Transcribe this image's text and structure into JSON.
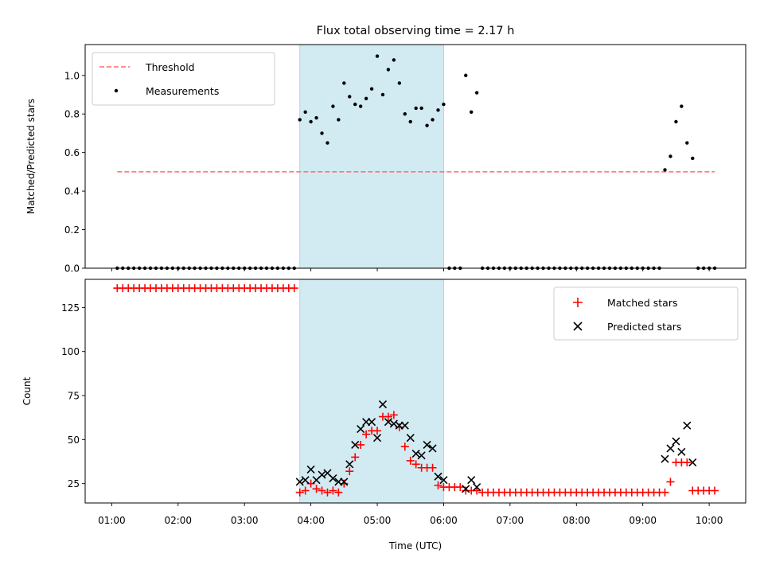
{
  "chart_data": {
    "title": "Flux total observing time = 2.17 h",
    "xlabel": "Time (UTC)",
    "x_ticks": [
      "01:00",
      "02:00",
      "03:00",
      "04:00",
      "05:00",
      "06:00",
      "07:00",
      "08:00",
      "09:00",
      "10:00"
    ],
    "highlight_span": {
      "start": "03:50",
      "end": "06:00",
      "color": "#add8e6"
    },
    "colors": {
      "threshold": "#ff6b6b",
      "matched": "#ff0000",
      "predicted": "#000000",
      "measurements": "#000000"
    },
    "panels": [
      {
        "type": "scatter",
        "ylabel": "Matched/Predicted stars",
        "ylim": [
          0,
          1.16
        ],
        "y_ticks": [
          "0.0",
          "0.2",
          "0.4",
          "0.6",
          "0.8",
          "1.0"
        ],
        "legend_position": "top-left",
        "threshold": {
          "name": "Threshold",
          "value": 0.5,
          "x_range": [
            "01:05",
            "10:05"
          ]
        },
        "measurements_label": "Measurements",
        "measurements": [
          [
            "01:05",
            0
          ],
          [
            "01:10",
            0
          ],
          [
            "01:15",
            0
          ],
          [
            "01:20",
            0
          ],
          [
            "01:25",
            0
          ],
          [
            "01:30",
            0
          ],
          [
            "01:35",
            0
          ],
          [
            "01:40",
            0
          ],
          [
            "01:45",
            0
          ],
          [
            "01:50",
            0
          ],
          [
            "01:55",
            0
          ],
          [
            "02:00",
            0
          ],
          [
            "02:05",
            0
          ],
          [
            "02:10",
            0
          ],
          [
            "02:15",
            0
          ],
          [
            "02:20",
            0
          ],
          [
            "02:25",
            0
          ],
          [
            "02:30",
            0
          ],
          [
            "02:35",
            0
          ],
          [
            "02:40",
            0
          ],
          [
            "02:45",
            0
          ],
          [
            "02:50",
            0
          ],
          [
            "02:55",
            0
          ],
          [
            "03:00",
            0
          ],
          [
            "03:05",
            0
          ],
          [
            "03:10",
            0
          ],
          [
            "03:15",
            0
          ],
          [
            "03:20",
            0
          ],
          [
            "03:25",
            0
          ],
          [
            "03:30",
            0
          ],
          [
            "03:35",
            0
          ],
          [
            "03:40",
            0
          ],
          [
            "03:45",
            0
          ],
          [
            "03:50",
            0.77
          ],
          [
            "03:55",
            0.81
          ],
          [
            "04:00",
            0.76
          ],
          [
            "04:05",
            0.78
          ],
          [
            "04:10",
            0.7
          ],
          [
            "04:15",
            0.65
          ],
          [
            "04:20",
            0.84
          ],
          [
            "04:25",
            0.77
          ],
          [
            "04:30",
            0.96
          ],
          [
            "04:35",
            0.89
          ],
          [
            "04:40",
            0.85
          ],
          [
            "04:45",
            0.84
          ],
          [
            "04:50",
            0.88
          ],
          [
            "04:55",
            0.93
          ],
          [
            "05:00",
            1.1
          ],
          [
            "05:05",
            0.9
          ],
          [
            "05:10",
            1.03
          ],
          [
            "05:15",
            1.08
          ],
          [
            "05:20",
            0.96
          ],
          [
            "05:25",
            0.8
          ],
          [
            "05:30",
            0.76
          ],
          [
            "05:35",
            0.83
          ],
          [
            "05:40",
            0.83
          ],
          [
            "05:45",
            0.74
          ],
          [
            "05:50",
            0.77
          ],
          [
            "05:55",
            0.82
          ],
          [
            "06:00",
            0.85
          ],
          [
            "06:05",
            0
          ],
          [
            "06:10",
            0
          ],
          [
            "06:15",
            0
          ],
          [
            "06:20",
            1.0
          ],
          [
            "06:25",
            0.81
          ],
          [
            "06:30",
            0.91
          ],
          [
            "06:35",
            0
          ],
          [
            "06:40",
            0
          ],
          [
            "06:45",
            0
          ],
          [
            "06:50",
            0
          ],
          [
            "06:55",
            0
          ],
          [
            "07:00",
            0
          ],
          [
            "07:05",
            0
          ],
          [
            "07:10",
            0
          ],
          [
            "07:15",
            0
          ],
          [
            "07:20",
            0
          ],
          [
            "07:25",
            0
          ],
          [
            "07:30",
            0
          ],
          [
            "07:35",
            0
          ],
          [
            "07:40",
            0
          ],
          [
            "07:45",
            0
          ],
          [
            "07:50",
            0
          ],
          [
            "07:55",
            0
          ],
          [
            "08:00",
            0
          ],
          [
            "08:05",
            0
          ],
          [
            "08:10",
            0
          ],
          [
            "08:15",
            0
          ],
          [
            "08:20",
            0
          ],
          [
            "08:25",
            0
          ],
          [
            "08:30",
            0
          ],
          [
            "08:35",
            0
          ],
          [
            "08:40",
            0
          ],
          [
            "08:45",
            0
          ],
          [
            "08:50",
            0
          ],
          [
            "08:55",
            0
          ],
          [
            "09:00",
            0
          ],
          [
            "09:05",
            0
          ],
          [
            "09:10",
            0
          ],
          [
            "09:15",
            0
          ],
          [
            "09:20",
            0.51
          ],
          [
            "09:25",
            0.58
          ],
          [
            "09:30",
            0.76
          ],
          [
            "09:35",
            0.84
          ],
          [
            "09:40",
            0.65
          ],
          [
            "09:45",
            0.57
          ],
          [
            "09:50",
            0
          ],
          [
            "09:55",
            0
          ],
          [
            "10:00",
            0
          ],
          [
            "10:05",
            0
          ]
        ]
      },
      {
        "type": "scatter",
        "ylabel": "Count",
        "ylim": [
          14,
          141
        ],
        "y_ticks": [
          "25",
          "50",
          "75",
          "100",
          "125"
        ],
        "legend_position": "top-right",
        "series": [
          {
            "name": "Matched stars",
            "marker": "plus",
            "points": [
              [
                "01:05",
                136
              ],
              [
                "01:10",
                136
              ],
              [
                "01:15",
                136
              ],
              [
                "01:20",
                136
              ],
              [
                "01:25",
                136
              ],
              [
                "01:30",
                136
              ],
              [
                "01:35",
                136
              ],
              [
                "01:40",
                136
              ],
              [
                "01:45",
                136
              ],
              [
                "01:50",
                136
              ],
              [
                "01:55",
                136
              ],
              [
                "02:00",
                136
              ],
              [
                "02:05",
                136
              ],
              [
                "02:10",
                136
              ],
              [
                "02:15",
                136
              ],
              [
                "02:20",
                136
              ],
              [
                "02:25",
                136
              ],
              [
                "02:30",
                136
              ],
              [
                "02:35",
                136
              ],
              [
                "02:40",
                136
              ],
              [
                "02:45",
                136
              ],
              [
                "02:50",
                136
              ],
              [
                "02:55",
                136
              ],
              [
                "03:00",
                136
              ],
              [
                "03:05",
                136
              ],
              [
                "03:10",
                136
              ],
              [
                "03:15",
                136
              ],
              [
                "03:20",
                136
              ],
              [
                "03:25",
                136
              ],
              [
                "03:30",
                136
              ],
              [
                "03:35",
                136
              ],
              [
                "03:40",
                136
              ],
              [
                "03:45",
                136
              ],
              [
                "03:50",
                20
              ],
              [
                "03:55",
                21
              ],
              [
                "04:00",
                25
              ],
              [
                "04:05",
                22
              ],
              [
                "04:10",
                21
              ],
              [
                "04:15",
                20
              ],
              [
                "04:20",
                21
              ],
              [
                "04:25",
                20
              ],
              [
                "04:30",
                25
              ],
              [
                "04:35",
                32
              ],
              [
                "04:40",
                40
              ],
              [
                "04:45",
                47
              ],
              [
                "04:50",
                53
              ],
              [
                "04:55",
                55
              ],
              [
                "05:00",
                55
              ],
              [
                "05:05",
                63
              ],
              [
                "05:10",
                63
              ],
              [
                "05:15",
                64
              ],
              [
                "05:20",
                57
              ],
              [
                "05:25",
                46
              ],
              [
                "05:30",
                38
              ],
              [
                "05:35",
                36
              ],
              [
                "05:40",
                34
              ],
              [
                "05:45",
                34
              ],
              [
                "05:50",
                34
              ],
              [
                "05:55",
                24
              ],
              [
                "06:00",
                23
              ],
              [
                "06:05",
                23
              ],
              [
                "06:10",
                23
              ],
              [
                "06:15",
                23
              ],
              [
                "06:20",
                21
              ],
              [
                "06:25",
                21
              ],
              [
                "06:30",
                21
              ],
              [
                "06:35",
                20
              ],
              [
                "06:40",
                20
              ],
              [
                "06:45",
                20
              ],
              [
                "06:50",
                20
              ],
              [
                "06:55",
                20
              ],
              [
                "07:00",
                20
              ],
              [
                "07:05",
                20
              ],
              [
                "07:10",
                20
              ],
              [
                "07:15",
                20
              ],
              [
                "07:20",
                20
              ],
              [
                "07:25",
                20
              ],
              [
                "07:30",
                20
              ],
              [
                "07:35",
                20
              ],
              [
                "07:40",
                20
              ],
              [
                "07:45",
                20
              ],
              [
                "07:50",
                20
              ],
              [
                "07:55",
                20
              ],
              [
                "08:00",
                20
              ],
              [
                "08:05",
                20
              ],
              [
                "08:10",
                20
              ],
              [
                "08:15",
                20
              ],
              [
                "08:20",
                20
              ],
              [
                "08:25",
                20
              ],
              [
                "08:30",
                20
              ],
              [
                "08:35",
                20
              ],
              [
                "08:40",
                20
              ],
              [
                "08:45",
                20
              ],
              [
                "08:50",
                20
              ],
              [
                "08:55",
                20
              ],
              [
                "09:00",
                20
              ],
              [
                "09:05",
                20
              ],
              [
                "09:10",
                20
              ],
              [
                "09:15",
                20
              ],
              [
                "09:20",
                20
              ],
              [
                "09:25",
                26
              ],
              [
                "09:30",
                37
              ],
              [
                "09:35",
                37
              ],
              [
                "09:40",
                37
              ],
              [
                "09:45",
                21
              ],
              [
                "09:50",
                21
              ],
              [
                "09:55",
                21
              ],
              [
                "10:00",
                21
              ],
              [
                "10:05",
                21
              ]
            ]
          },
          {
            "name": "Predicted stars",
            "marker": "x",
            "points": [
              [
                "03:50",
                26
              ],
              [
                "03:55",
                27
              ],
              [
                "04:00",
                33
              ],
              [
                "04:05",
                27
              ],
              [
                "04:10",
                30
              ],
              [
                "04:15",
                31
              ],
              [
                "04:20",
                28
              ],
              [
                "04:25",
                26
              ],
              [
                "04:30",
                26
              ],
              [
                "04:35",
                36
              ],
              [
                "04:40",
                47
              ],
              [
                "04:45",
                56
              ],
              [
                "04:50",
                60
              ],
              [
                "04:55",
                60
              ],
              [
                "05:00",
                51
              ],
              [
                "05:05",
                70
              ],
              [
                "05:10",
                60
              ],
              [
                "05:15",
                59
              ],
              [
                "05:20",
                58
              ],
              [
                "05:25",
                58
              ],
              [
                "05:30",
                51
              ],
              [
                "05:35",
                42
              ],
              [
                "05:40",
                41
              ],
              [
                "05:45",
                47
              ],
              [
                "05:50",
                45
              ],
              [
                "05:55",
                29
              ],
              [
                "06:00",
                27
              ],
              [
                "06:20",
                22
              ],
              [
                "06:25",
                27
              ],
              [
                "06:30",
                23
              ],
              [
                "09:20",
                39
              ],
              [
                "09:25",
                45
              ],
              [
                "09:30",
                49
              ],
              [
                "09:35",
                43
              ],
              [
                "09:40",
                58
              ],
              [
                "09:45",
                37
              ]
            ]
          }
        ]
      }
    ]
  }
}
